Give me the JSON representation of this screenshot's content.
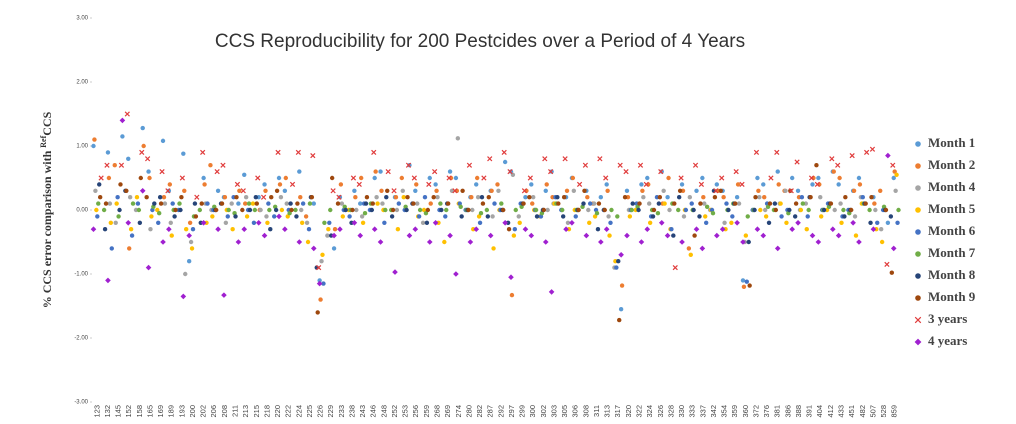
{
  "chart_data": {
    "type": "scatter",
    "title": "CCS Reproducibility for 200 Pestcides over a Period of 4 Years",
    "y_label": "% CCS error comparison with",
    "y_label_sup": "Ref",
    "y_label_end": "CCS",
    "categories": [
      "123",
      "132",
      "145",
      "152",
      "158",
      "165",
      "169",
      "189",
      "193",
      "200",
      "202",
      "206",
      "208",
      "211",
      "213",
      "215",
      "218",
      "220",
      "222",
      "224",
      "225",
      "226",
      "229",
      "233",
      "238",
      "243",
      "246",
      "248",
      "252",
      "253",
      "256",
      "259",
      "268",
      "269",
      "274",
      "280",
      "282",
      "287",
      "292",
      "297",
      "299",
      "300",
      "302",
      "303",
      "305",
      "306",
      "308",
      "311",
      "313",
      "317",
      "320",
      "322",
      "324",
      "326",
      "328",
      "330",
      "333",
      "337",
      "342",
      "354",
      "359",
      "360",
      "372",
      "376",
      "381",
      "386",
      "388",
      "391",
      "404",
      "412",
      "433",
      "451",
      "482",
      "507",
      "528",
      "859"
    ],
    "ylim": [
      -3,
      3
    ],
    "yticks": [
      {
        "value": 3,
        "label": "3.00"
      },
      {
        "value": 2,
        "label": "2.00"
      },
      {
        "value": 1,
        "label": "1.00"
      },
      {
        "value": 0,
        "label": "0.00"
      },
      {
        "value": -1,
        "label": "-1.00"
      },
      {
        "value": -2,
        "label": "-2.00"
      },
      {
        "value": -3,
        "label": "-3.00"
      }
    ],
    "grid": false,
    "legend_position": "right",
    "series": [
      {
        "name": "Month 1",
        "color": "#5b9bd5",
        "marker": "circle",
        "values": [
          1.0,
          0.9,
          1.15,
          0.8,
          1.28,
          0.6,
          1.08,
          0.3,
          0.88,
          -0.8,
          0.5,
          0.3,
          0.2,
          0.1,
          0.55,
          0.2,
          0.4,
          0.5,
          0.3,
          0.6,
          0.1,
          -1.1,
          -0.6,
          0.2,
          0.3,
          0.1,
          0.5,
          0.6,
          0.2,
          0.7,
          0.3,
          0.5,
          0.4,
          0.6,
          0.5,
          0.2,
          0.4,
          0.3,
          0.75,
          0.6,
          0.2,
          0.4,
          0.3,
          0.6,
          0.2,
          0.5,
          0.3,
          0.2,
          0.4,
          -1.55,
          0.3,
          0.4,
          0.5,
          0.6,
          0.2,
          0.4,
          0.3,
          0.5,
          0.4,
          0.3,
          0.2,
          -1.1,
          0.5,
          0.4,
          0.6,
          0.5,
          0.3,
          0.4,
          0.5,
          0.6,
          0.4,
          0.3,
          0.5,
          0.2,
          -0.2,
          0.5
        ]
      },
      {
        "name": "Month 2",
        "color": "#ed7d31",
        "marker": "circle",
        "values": [
          1.1,
          0.5,
          0.7,
          -0.6,
          1.0,
          0.5,
          0.2,
          0.4,
          0.3,
          -0.2,
          0.4,
          0.7,
          0.2,
          0.3,
          0.1,
          0.0,
          0.3,
          0.4,
          0.5,
          0.2,
          -0.1,
          -1.4,
          -0.3,
          0.4,
          0.2,
          0.5,
          0.6,
          0.3,
          0.2,
          0.5,
          0.4,
          0.1,
          0.3,
          0.5,
          0.3,
          0.2,
          0.5,
          0.3,
          0.4,
          -1.33,
          0.3,
          0.1,
          0.4,
          0.2,
          0.3,
          0.5,
          0.2,
          0.1,
          0.3,
          -1.18,
          0.2,
          0.3,
          0.4,
          0.1,
          0.5,
          0.3,
          -0.6,
          0.2,
          0.3,
          0.2,
          0.4,
          -1.2,
          0.3,
          0.2,
          0.4,
          0.3,
          0.2,
          0.5,
          0.4,
          0.6,
          0.5,
          0.3,
          0.4,
          0.1,
          0.3,
          0.6
        ]
      },
      {
        "name": "Month 4",
        "color": "#a5a5a5",
        "marker": "circle",
        "values": [
          0.3,
          0.1,
          -0.2,
          0.2,
          0.0,
          -0.3,
          0.1,
          -0.2,
          -1.0,
          -0.5,
          0.1,
          0.0,
          -0.2,
          0.1,
          0.2,
          0.0,
          -0.1,
          0.2,
          0.1,
          0.0,
          -0.2,
          -0.8,
          -0.4,
          0.1,
          0.0,
          -0.1,
          0.2,
          0.1,
          0.0,
          0.3,
          0.1,
          -0.2,
          0.2,
          0.3,
          1.12,
          0.0,
          0.2,
          -0.1,
          0.3,
          0.55,
          -0.1,
          0.2,
          0.0,
          0.1,
          -0.2,
          0.3,
          0.0,
          0.1,
          -0.1,
          -0.9,
          0.0,
          0.2,
          0.1,
          0.3,
          0.0,
          -0.1,
          0.2,
          0.1,
          0.0,
          -0.2,
          0.1,
          -0.5,
          0.2,
          0.0,
          0.1,
          0.3,
          0.0,
          0.1,
          0.2,
          0.0,
          0.1,
          -0.1,
          0.2,
          0.0,
          -0.3,
          0.3
        ]
      },
      {
        "name": "Month 5",
        "color": "#ffc000",
        "marker": "circle",
        "values": [
          0.0,
          -0.2,
          0.1,
          -0.3,
          0.2,
          -0.1,
          0.0,
          -0.4,
          -0.3,
          -0.6,
          -0.2,
          -0.1,
          0.0,
          -0.3,
          -0.1,
          0.1,
          -0.2,
          0.0,
          -0.1,
          -0.2,
          -0.5,
          -0.7,
          -0.3,
          -0.1,
          0.0,
          -0.2,
          0.1,
          0.0,
          -0.3,
          0.2,
          -0.1,
          0.0,
          -0.2,
          -0.5,
          0.1,
          -0.3,
          -0.1,
          -0.6,
          0.0,
          -0.4,
          -0.2,
          0.0,
          -0.1,
          0.1,
          -0.3,
          0.0,
          -0.2,
          -0.1,
          -0.4,
          -0.8,
          -0.1,
          0.0,
          -0.2,
          0.1,
          -0.3,
          0.0,
          -0.7,
          -0.1,
          0.0,
          -0.3,
          -0.2,
          -0.4,
          0.0,
          -0.1,
          0.1,
          -0.2,
          0.0,
          -0.3,
          -0.1,
          0.0,
          -0.2,
          -0.4,
          0.1,
          -0.3,
          -0.5,
          0.55
        ]
      },
      {
        "name": "Month 6",
        "color": "#4472c4",
        "marker": "circle",
        "values": [
          -0.1,
          -0.6,
          0.2,
          -0.4,
          0.1,
          0.0,
          -0.2,
          0.1,
          0.0,
          -0.3,
          0.1,
          0.0,
          -0.1,
          0.2,
          0.0,
          -0.2,
          0.1,
          -0.1,
          0.0,
          0.1,
          -0.3,
          -1.15,
          -0.2,
          0.0,
          -0.1,
          0.1,
          0.0,
          -0.2,
          0.1,
          0.0,
          -0.1,
          0.2,
          0.0,
          -0.1,
          0.1,
          0.0,
          -0.2,
          0.1,
          0.0,
          -0.3,
          0.1,
          0.0,
          -0.1,
          0.2,
          0.0,
          -0.1,
          0.1,
          0.0,
          -0.2,
          -0.9,
          0.0,
          0.1,
          -0.1,
          0.2,
          -0.3,
          0.0,
          0.1,
          -0.2,
          0.0,
          0.1,
          -0.1,
          -1.12,
          0.0,
          0.1,
          -0.1,
          0.0,
          0.2,
          -0.1,
          0.0,
          0.1,
          -0.1,
          0.0,
          0.2,
          -0.2,
          0.0,
          -0.2
        ]
      },
      {
        "name": "Month 7",
        "color": "#70ad47",
        "marker": "circle",
        "values": [
          0.1,
          0.0,
          -0.1,
          0.1,
          0.0,
          0.05,
          -0.05,
          0.0,
          0.1,
          -0.1,
          0.0,
          0.05,
          0.0,
          -0.05,
          0.1,
          0.0,
          0.0,
          0.05,
          -0.05,
          0.0,
          0.1,
          -0.2,
          0.0,
          0.05,
          0.0,
          -0.05,
          0.1,
          0.0,
          0.0,
          0.05,
          0.0,
          -0.05,
          0.1,
          0.0,
          0.05,
          0.0,
          -0.05,
          0.0,
          0.1,
          0.0,
          0.05,
          0.0,
          -0.05,
          0.1,
          0.0,
          0.0,
          0.05,
          -0.05,
          0.0,
          -0.1,
          0.0,
          0.05,
          0.0,
          -0.05,
          0.1,
          0.0,
          0.0,
          0.05,
          -0.05,
          0.0,
          0.1,
          -0.1,
          0.0,
          0.05,
          0.0,
          -0.05,
          0.1,
          0.0,
          0.0,
          0.05,
          0.0,
          -0.05,
          0.1,
          0.0,
          0.05,
          0.0
        ]
      },
      {
        "name": "Month 8",
        "color": "#264478",
        "marker": "circle",
        "values": [
          0.4,
          -0.3,
          0.0,
          0.3,
          -0.2,
          0.1,
          0.2,
          -0.1,
          0.0,
          0.1,
          -0.2,
          0.0,
          0.1,
          -0.1,
          0.0,
          0.2,
          -0.3,
          0.0,
          0.1,
          -0.1,
          0.2,
          -0.9,
          -0.4,
          0.0,
          -0.2,
          0.1,
          0.0,
          0.2,
          -0.1,
          0.0,
          0.1,
          -0.2,
          0.0,
          0.1,
          -0.1,
          0.0,
          0.2,
          -0.1,
          0.0,
          -0.2,
          0.1,
          -0.1,
          0.0,
          0.2,
          -0.1,
          0.0,
          0.1,
          -0.3,
          0.0,
          -0.8,
          0.1,
          0.0,
          -0.1,
          0.1,
          -0.4,
          0.2,
          0.0,
          -0.1,
          0.3,
          0.0,
          0.1,
          -0.5,
          0.0,
          -0.2,
          0.1,
          0.0,
          -0.1,
          0.2,
          0.0,
          0.1,
          -0.1,
          0.0,
          0.1,
          -0.2,
          0.0,
          -0.1
        ]
      },
      {
        "name": "Month 9",
        "color": "#9e480e",
        "marker": "circle",
        "values": [
          0.2,
          0.1,
          0.4,
          0.3,
          0.5,
          0.2,
          0.1,
          0.0,
          0.2,
          -0.1,
          0.1,
          0.0,
          0.1,
          0.2,
          0.0,
          0.1,
          0.2,
          0.3,
          0.0,
          0.1,
          0.2,
          -1.6,
          0.5,
          0.1,
          0.0,
          0.2,
          0.1,
          0.3,
          0.0,
          0.2,
          0.1,
          0.0,
          0.2,
          0.1,
          0.3,
          0.0,
          0.1,
          0.2,
          0.0,
          -0.3,
          0.1,
          0.2,
          0.0,
          0.1,
          0.2,
          0.0,
          0.3,
          0.1,
          0.0,
          -1.72,
          0.2,
          0.1,
          0.0,
          0.2,
          0.1,
          0.3,
          -0.4,
          0.1,
          0.2,
          0.3,
          0.1,
          -1.18,
          0.2,
          0.1,
          0.0,
          0.3,
          0.1,
          0.2,
          0.7,
          0.1,
          0.2,
          0.0,
          0.1,
          0.2,
          0.0,
          -0.98
        ]
      },
      {
        "name": "3 years",
        "color": "#e03c3c",
        "marker": "cross",
        "values": [
          0.5,
          0.7,
          0.7,
          1.5,
          0.9,
          0.8,
          0.6,
          0.3,
          0.5,
          0.2,
          0.9,
          0.6,
          0.7,
          0.4,
          0.3,
          0.5,
          0.2,
          0.9,
          0.4,
          0.9,
          0.85,
          -0.9,
          0.3,
          0.2,
          0.5,
          0.4,
          0.9,
          0.6,
          0.3,
          0.7,
          0.5,
          0.4,
          0.6,
          0.5,
          0.3,
          0.7,
          0.5,
          0.8,
          0.9,
          0.6,
          0.3,
          0.5,
          0.8,
          0.6,
          0.8,
          0.4,
          0.7,
          0.8,
          0.5,
          0.7,
          0.6,
          0.7,
          0.4,
          0.6,
          -0.9,
          0.5,
          0.7,
          0.4,
          0.3,
          0.5,
          0.6,
          0.4,
          0.9,
          0.5,
          0.9,
          0.3,
          0.75,
          0.5,
          0.4,
          0.8,
          0.7,
          0.85,
          0.9,
          0.95,
          -0.85,
          0.7
        ]
      },
      {
        "name": "4 years",
        "color": "#a020d0",
        "marker": "diamond",
        "values": [
          -0.3,
          -1.1,
          1.4,
          -0.2,
          0.3,
          -0.9,
          -0.5,
          -0.3,
          -1.35,
          -0.4,
          -0.2,
          -0.3,
          -1.33,
          -0.5,
          -0.3,
          -0.2,
          -0.4,
          -0.1,
          -0.3,
          -0.5,
          -0.6,
          -1.15,
          -0.4,
          -0.3,
          -0.2,
          -0.4,
          -0.3,
          -0.5,
          -0.97,
          -0.4,
          -0.3,
          -0.5,
          -0.2,
          -0.4,
          -1.0,
          -0.5,
          -0.3,
          -0.4,
          -0.2,
          -1.05,
          -0.3,
          -0.4,
          -0.5,
          -1.28,
          -0.3,
          -0.2,
          -0.4,
          -0.5,
          -0.3,
          -0.7,
          -0.4,
          -0.5,
          -0.3,
          -0.2,
          -0.4,
          -0.5,
          -0.3,
          -0.6,
          -0.4,
          -0.3,
          -0.2,
          -0.5,
          -0.3,
          -0.4,
          -0.6,
          -0.3,
          -0.2,
          -0.4,
          -0.5,
          -0.3,
          -0.4,
          -0.2,
          -0.5,
          -0.3,
          0.85,
          -0.6
        ]
      }
    ]
  }
}
